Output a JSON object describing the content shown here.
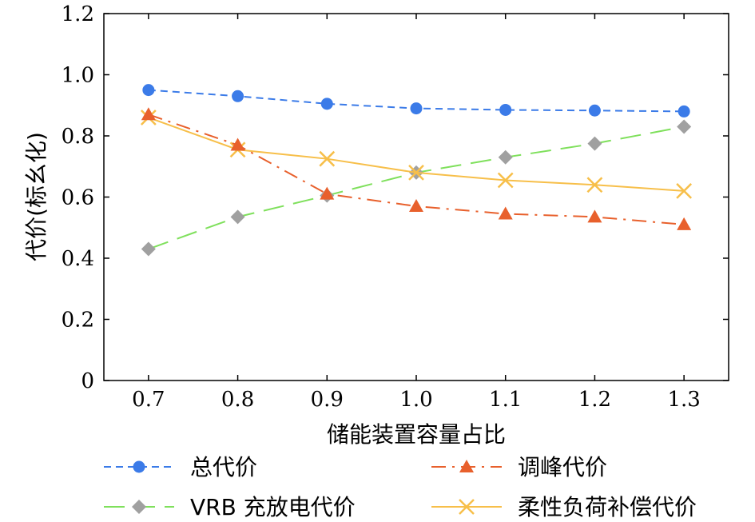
{
  "chart_data": {
    "type": "line",
    "xlabel": "储能装置容量占比",
    "ylabel": "代价(标幺化)",
    "xlim": [
      0.65,
      1.35
    ],
    "ylim": [
      0,
      1.2
    ],
    "x": [
      0.7,
      0.8,
      0.9,
      1.0,
      1.1,
      1.2,
      1.3
    ],
    "x_tick_labels": [
      "0.7",
      "0.8",
      "0.9",
      "1.0",
      "1.1",
      "1.2",
      "1.3"
    ],
    "y_ticks": [
      0,
      0.2,
      0.4,
      0.6,
      0.8,
      1.0,
      1.2
    ],
    "y_tick_labels": [
      "0",
      "0.2",
      "0.4",
      "0.6",
      "0.8",
      "1.0",
      "1.2"
    ],
    "grid": false,
    "legend_position": "bottom",
    "series": [
      {
        "name": "总代价",
        "values": [
          0.95,
          0.93,
          0.905,
          0.89,
          0.885,
          0.883,
          0.88
        ],
        "color": "#3b7be8",
        "marker": "circle",
        "line": "dashed"
      },
      {
        "name": "调峰代价",
        "values": [
          0.87,
          0.77,
          0.61,
          0.57,
          0.545,
          0.535,
          0.51
        ],
        "color": "#e8602c",
        "marker": "triangle",
        "line": "dashdot"
      },
      {
        "name": "VRB 充放电代价",
        "values": [
          0.43,
          0.535,
          0.605,
          0.68,
          0.73,
          0.775,
          0.83
        ],
        "color": "#7fe05c",
        "marker": "diamond",
        "line": "longdash",
        "marker_color": "#a0a0a0"
      },
      {
        "name": "柔性负荷补偿代价",
        "values": [
          0.86,
          0.755,
          0.725,
          0.68,
          0.655,
          0.64,
          0.62
        ],
        "color": "#f7bf4a",
        "marker": "x",
        "line": "solid"
      }
    ]
  }
}
